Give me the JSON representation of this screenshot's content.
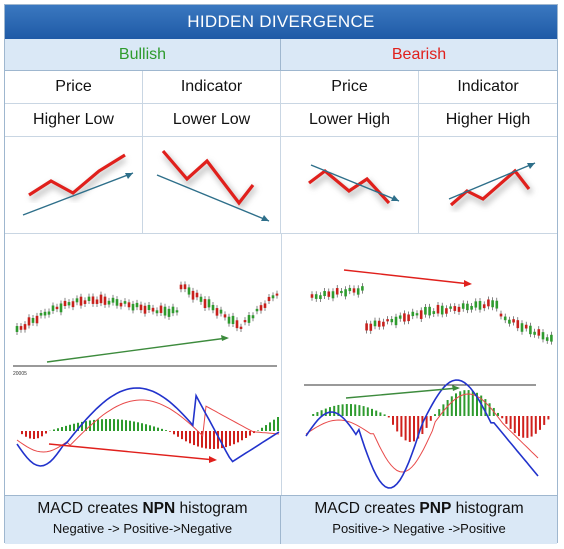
{
  "title": "HIDDEN DIVERGENCE",
  "columns": [
    {
      "label": "Bullish",
      "color": "#2e9b2e",
      "sub_headers": [
        {
          "name": "Price",
          "trend": "Higher Low"
        },
        {
          "name": "Indicator",
          "trend": "Lower Low"
        }
      ],
      "chart_axis_label": "20005",
      "footer_prefix": "MACD creates ",
      "footer_bold": "NPN",
      "footer_suffix": " histogram",
      "footer_sequence": "Negative -> Positive->Negative"
    },
    {
      "label": "Bearish",
      "color": "#e0201c",
      "sub_headers": [
        {
          "name": "Price",
          "trend": "Lower High"
        },
        {
          "name": "Indicator",
          "trend": "Higher High"
        }
      ],
      "footer_prefix": "MACD creates ",
      "footer_bold": "PNP",
      "footer_suffix": " histogram",
      "footer_sequence": "Positive-> Negative ->Positive"
    }
  ],
  "colors": {
    "header_bar": "#1f5aa6",
    "header_band": "#dae8f6",
    "pattern_line": "#e0201c",
    "trend_arrow": "#2e6f8a",
    "bull_candle": "#2e9b2e",
    "bear_candle": "#c8201c",
    "macd_line": "#2233cc",
    "signal_line": "#e84a4a"
  }
}
